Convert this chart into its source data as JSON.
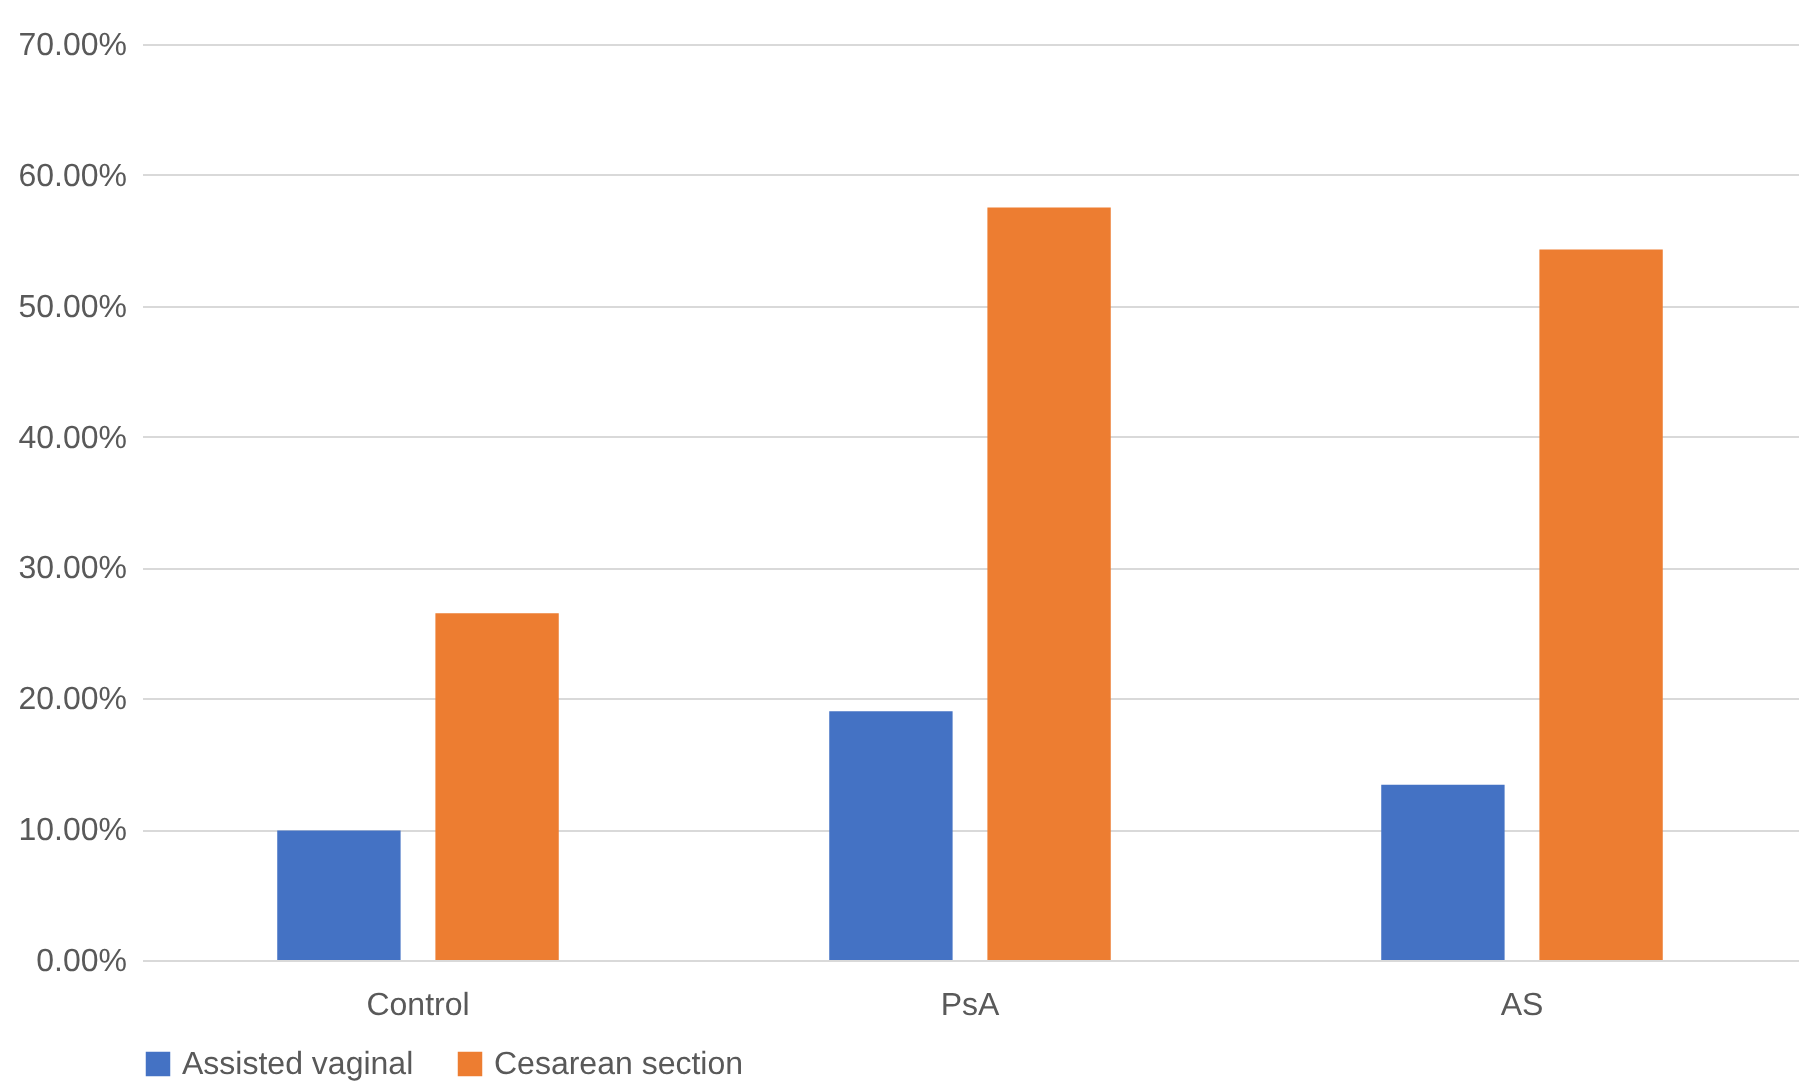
{
  "chart_data": {
    "type": "bar",
    "categories": [
      "Control",
      "PsA",
      "AS"
    ],
    "series": [
      {
        "name": "Assisted vaginal",
        "color": "#4472c4",
        "values": [
          9.9,
          19.0,
          13.4
        ]
      },
      {
        "name": "Cesarean section",
        "color": "#ed7d31",
        "values": [
          26.5,
          57.5,
          54.3
        ]
      }
    ],
    "ylim": [
      0,
      70
    ],
    "yticks": [
      {
        "value": 0,
        "label": "0.00%"
      },
      {
        "value": 10,
        "label": "10.00%"
      },
      {
        "value": 20,
        "label": "20.00%"
      },
      {
        "value": 30,
        "label": "30.00%"
      },
      {
        "value": 40,
        "label": "40.00%"
      },
      {
        "value": 50,
        "label": "50.00%"
      },
      {
        "value": 60,
        "label": "60.00%"
      },
      {
        "value": 70,
        "label": "70.00%"
      }
    ],
    "grid": "y",
    "legend": "bottom"
  }
}
